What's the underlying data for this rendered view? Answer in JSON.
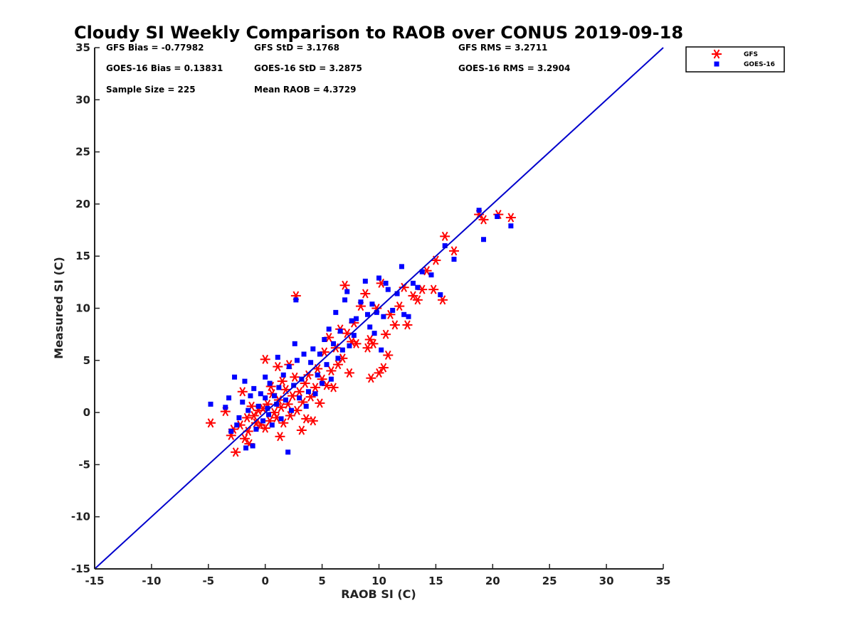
{
  "chart_data": {
    "type": "scatter",
    "title": "Cloudy SI Weekly Comparison to RAOB over CONUS 2019-09-18",
    "xlabel": "RAOB SI (C)",
    "ylabel": "Measured SI (C)",
    "xlim": [
      -15,
      35
    ],
    "ylim": [
      -15,
      35
    ],
    "xticks": [
      -15,
      -10,
      -5,
      0,
      5,
      10,
      15,
      20,
      25,
      30,
      35
    ],
    "yticks": [
      -15,
      -10,
      -5,
      0,
      5,
      10,
      15,
      20,
      25,
      30,
      35
    ],
    "grid": false,
    "legend_position": "top-right-outside",
    "reference_line": {
      "from": [
        -15,
        -15
      ],
      "to": [
        35,
        35
      ],
      "color": "#0000cc"
    },
    "stats": [
      [
        "GFS Bias = -0.77982",
        "GFS StD = 3.1768",
        "GFS RMS = 3.2711"
      ],
      [
        "GOES-16 Bias = 0.13831",
        "GOES-16 StD = 3.2875",
        "GOES-16 RMS = 3.2904"
      ],
      [
        "Sample Size = 225",
        "Mean RAOB = 4.3729",
        ""
      ]
    ],
    "series": [
      {
        "name": "GFS",
        "marker": "asterisk",
        "color": "#ff0000",
        "points": [
          [
            -4.8,
            -1.0
          ],
          [
            -3.5,
            0.1
          ],
          [
            -3.0,
            -2.2
          ],
          [
            -2.8,
            -1.6
          ],
          [
            -2.6,
            -3.8
          ],
          [
            -2.2,
            -1.2
          ],
          [
            -2.0,
            2.0
          ],
          [
            -1.8,
            -2.5
          ],
          [
            -1.6,
            -0.5
          ],
          [
            -1.5,
            -1.8
          ],
          [
            -1.4,
            -3.0
          ],
          [
            -1.2,
            0.6
          ],
          [
            -1.0,
            -0.3
          ],
          [
            -0.8,
            -1.0
          ],
          [
            -0.6,
            0.2
          ],
          [
            -0.4,
            -1.2
          ],
          [
            -0.2,
            0.4
          ],
          [
            0.0,
            5.1
          ],
          [
            0.0,
            -1.5
          ],
          [
            0.2,
            0.8
          ],
          [
            0.4,
            -0.8
          ],
          [
            0.5,
            2.5
          ],
          [
            0.6,
            1.8
          ],
          [
            0.8,
            0.0
          ],
          [
            1.0,
            -0.5
          ],
          [
            1.1,
            4.4
          ],
          [
            1.2,
            1.2
          ],
          [
            1.3,
            -2.3
          ],
          [
            1.4,
            0.5
          ],
          [
            1.5,
            3.0
          ],
          [
            1.6,
            -1.0
          ],
          [
            1.8,
            2.2
          ],
          [
            2.0,
            0.8
          ],
          [
            2.1,
            4.6
          ],
          [
            2.2,
            -0.3
          ],
          [
            2.4,
            1.6
          ],
          [
            2.6,
            3.4
          ],
          [
            2.7,
            11.2
          ],
          [
            2.8,
            0.2
          ],
          [
            3.0,
            2.0
          ],
          [
            3.2,
            -1.7
          ],
          [
            3.3,
            1.0
          ],
          [
            3.5,
            2.8
          ],
          [
            3.6,
            -0.6
          ],
          [
            3.8,
            3.6
          ],
          [
            4.0,
            1.5
          ],
          [
            4.2,
            -0.8
          ],
          [
            4.4,
            2.4
          ],
          [
            4.6,
            4.2
          ],
          [
            4.8,
            0.9
          ],
          [
            5.0,
            3.2
          ],
          [
            5.2,
            5.8
          ],
          [
            5.4,
            2.6
          ],
          [
            5.6,
            7.2
          ],
          [
            5.8,
            4.0
          ],
          [
            6.0,
            2.4
          ],
          [
            6.2,
            6.2
          ],
          [
            6.4,
            4.6
          ],
          [
            6.6,
            8.0
          ],
          [
            6.8,
            5.2
          ],
          [
            7.0,
            12.2
          ],
          [
            7.2,
            7.6
          ],
          [
            7.4,
            3.8
          ],
          [
            7.6,
            6.8
          ],
          [
            7.8,
            8.6
          ],
          [
            8.0,
            6.6
          ],
          [
            8.4,
            10.2
          ],
          [
            8.8,
            11.4
          ],
          [
            9.0,
            6.2
          ],
          [
            9.2,
            7.0
          ],
          [
            9.3,
            3.3
          ],
          [
            9.5,
            6.6
          ],
          [
            9.8,
            10.0
          ],
          [
            10.0,
            3.8
          ],
          [
            10.2,
            12.4
          ],
          [
            10.4,
            4.3
          ],
          [
            10.6,
            7.5
          ],
          [
            10.8,
            5.5
          ],
          [
            11.0,
            9.4
          ],
          [
            11.4,
            8.4
          ],
          [
            11.8,
            10.2
          ],
          [
            12.2,
            12.0
          ],
          [
            12.5,
            8.4
          ],
          [
            13.0,
            11.2
          ],
          [
            13.4,
            10.8
          ],
          [
            13.8,
            11.8
          ],
          [
            14.2,
            13.6
          ],
          [
            14.8,
            11.8
          ],
          [
            15.0,
            14.6
          ],
          [
            15.6,
            10.8
          ],
          [
            15.8,
            16.9
          ],
          [
            16.6,
            15.5
          ],
          [
            18.8,
            19.0
          ],
          [
            19.2,
            18.5
          ],
          [
            20.5,
            19.0
          ],
          [
            21.6,
            18.7
          ]
        ]
      },
      {
        "name": "GOES-16",
        "marker": "square",
        "color": "#0000ff",
        "points": [
          [
            -4.8,
            0.8
          ],
          [
            -3.5,
            0.5
          ],
          [
            -3.2,
            1.4
          ],
          [
            -3.0,
            -1.8
          ],
          [
            -2.7,
            3.4
          ],
          [
            -2.5,
            -1.2
          ],
          [
            -2.3,
            -0.5
          ],
          [
            -2.0,
            1.0
          ],
          [
            -1.8,
            3.0
          ],
          [
            -1.7,
            -3.4
          ],
          [
            -1.5,
            0.2
          ],
          [
            -1.3,
            1.6
          ],
          [
            -1.1,
            -3.2
          ],
          [
            -1.0,
            2.3
          ],
          [
            -0.8,
            -1.6
          ],
          [
            -0.6,
            0.6
          ],
          [
            -0.4,
            1.8
          ],
          [
            -0.2,
            -0.8
          ],
          [
            0.0,
            1.4
          ],
          [
            0.0,
            3.4
          ],
          [
            0.2,
            0.4
          ],
          [
            0.3,
            -0.2
          ],
          [
            0.4,
            2.8
          ],
          [
            0.6,
            -1.2
          ],
          [
            0.8,
            1.6
          ],
          [
            1.0,
            0.8
          ],
          [
            1.1,
            5.3
          ],
          [
            1.2,
            2.4
          ],
          [
            1.4,
            -0.6
          ],
          [
            1.6,
            3.6
          ],
          [
            1.8,
            1.2
          ],
          [
            2.0,
            -3.8
          ],
          [
            2.1,
            4.4
          ],
          [
            2.3,
            0.2
          ],
          [
            2.5,
            2.6
          ],
          [
            2.6,
            6.6
          ],
          [
            2.7,
            10.8
          ],
          [
            2.8,
            5.0
          ],
          [
            3.0,
            1.4
          ],
          [
            3.2,
            3.2
          ],
          [
            3.4,
            5.6
          ],
          [
            3.6,
            0.6
          ],
          [
            3.8,
            2.0
          ],
          [
            4.0,
            4.8
          ],
          [
            4.2,
            6.1
          ],
          [
            4.4,
            1.8
          ],
          [
            4.6,
            3.6
          ],
          [
            4.8,
            5.6
          ],
          [
            5.0,
            2.8
          ],
          [
            5.2,
            7.0
          ],
          [
            5.4,
            4.6
          ],
          [
            5.6,
            8.0
          ],
          [
            5.8,
            3.2
          ],
          [
            6.0,
            6.6
          ],
          [
            6.2,
            9.6
          ],
          [
            6.4,
            5.2
          ],
          [
            6.6,
            7.8
          ],
          [
            6.8,
            6.0
          ],
          [
            7.0,
            10.8
          ],
          [
            7.2,
            11.6
          ],
          [
            7.4,
            6.4
          ],
          [
            7.6,
            8.8
          ],
          [
            7.8,
            7.4
          ],
          [
            8.0,
            9.0
          ],
          [
            8.4,
            10.6
          ],
          [
            8.8,
            12.6
          ],
          [
            9.0,
            9.4
          ],
          [
            9.2,
            8.2
          ],
          [
            9.4,
            10.4
          ],
          [
            9.6,
            7.6
          ],
          [
            9.8,
            9.6
          ],
          [
            10.0,
            12.9
          ],
          [
            10.2,
            6.0
          ],
          [
            10.4,
            9.2
          ],
          [
            10.6,
            12.4
          ],
          [
            10.8,
            11.8
          ],
          [
            11.2,
            9.8
          ],
          [
            11.6,
            11.4
          ],
          [
            12.0,
            14.0
          ],
          [
            12.2,
            9.4
          ],
          [
            12.6,
            9.2
          ],
          [
            13.0,
            12.4
          ],
          [
            13.4,
            12.0
          ],
          [
            13.8,
            13.5
          ],
          [
            14.6,
            13.2
          ],
          [
            15.4,
            11.3
          ],
          [
            15.8,
            16.0
          ],
          [
            16.6,
            14.7
          ],
          [
            18.8,
            19.4
          ],
          [
            19.2,
            16.6
          ],
          [
            20.4,
            18.8
          ],
          [
            21.6,
            17.9
          ]
        ]
      }
    ]
  }
}
